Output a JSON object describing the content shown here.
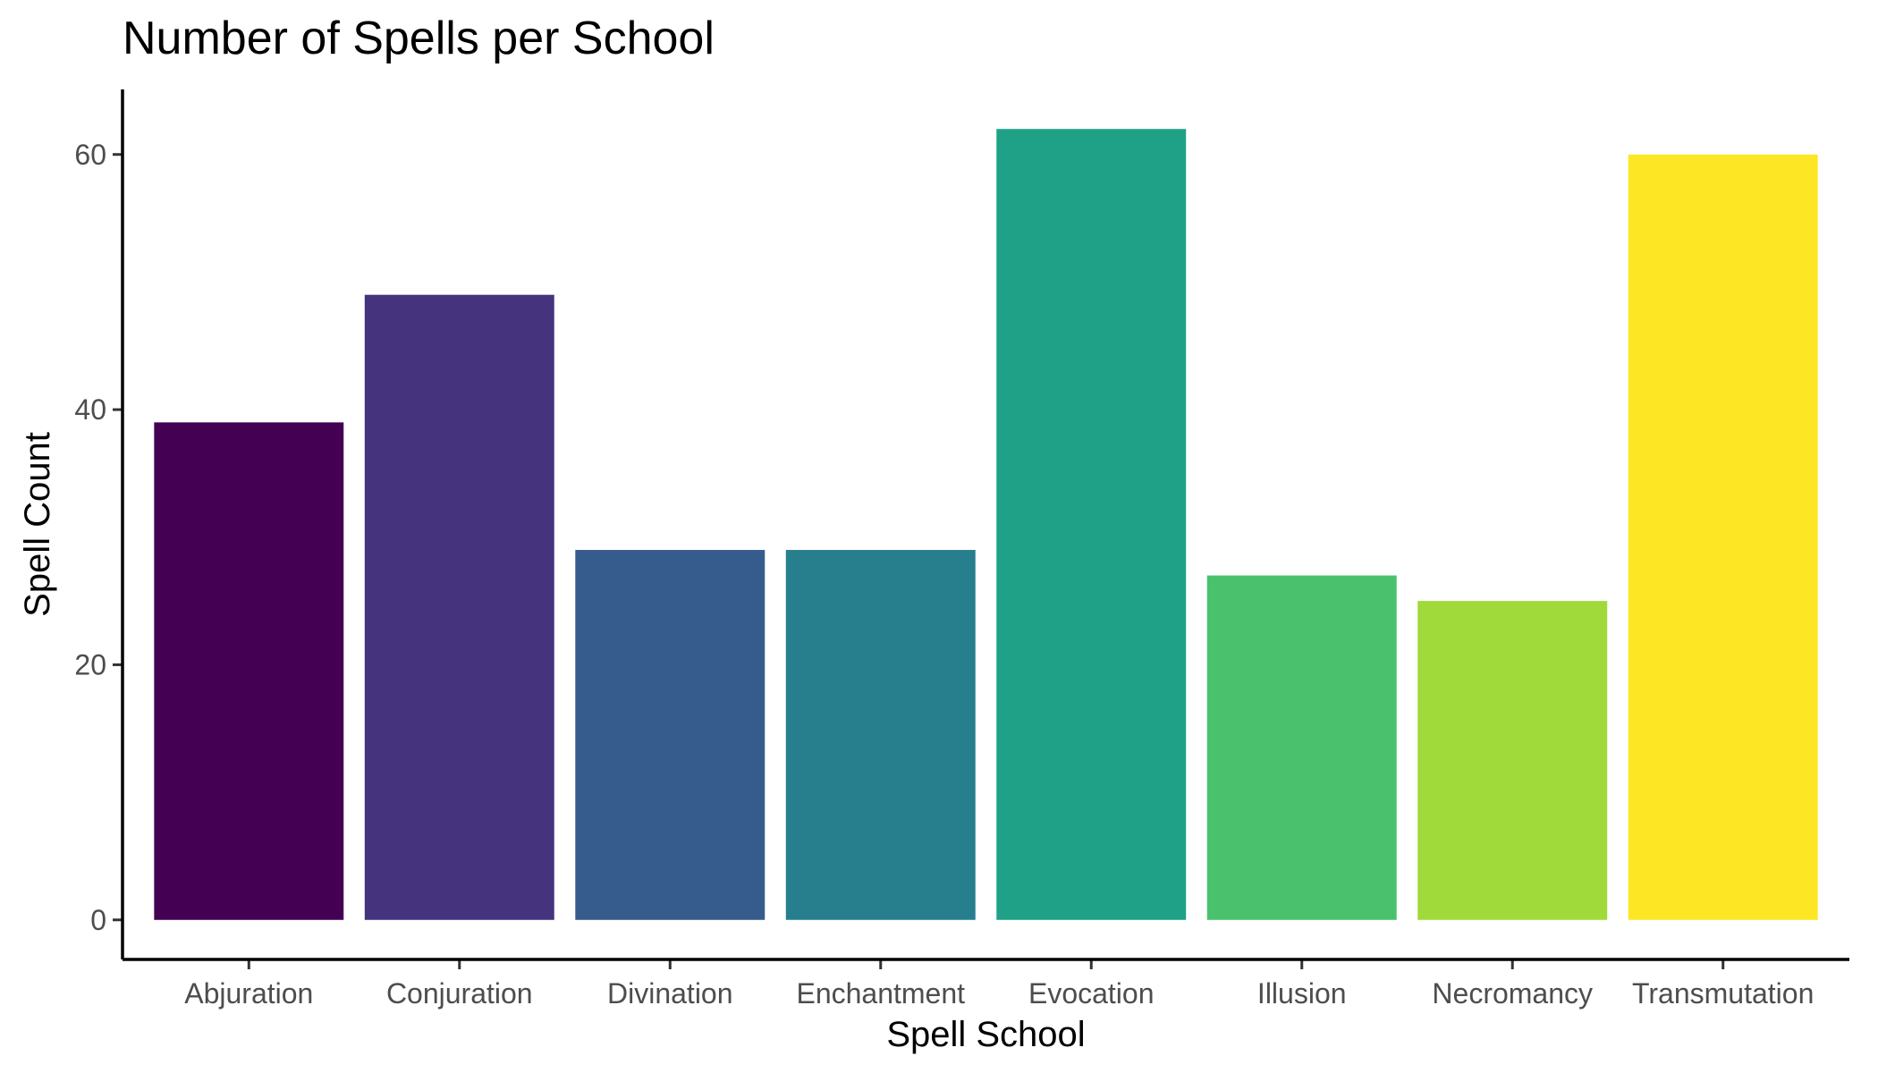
{
  "chart_data": {
    "type": "bar",
    "title": "Number of Spells per School",
    "xlabel": "Spell School",
    "ylabel": "Spell Count",
    "categories": [
      "Abjuration",
      "Conjuration",
      "Divination",
      "Enchantment",
      "Evocation",
      "Illusion",
      "Necromancy",
      "Transmutation"
    ],
    "values": [
      39,
      49,
      29,
      29,
      62,
      27,
      25,
      60
    ],
    "colors": [
      "#440154",
      "#46337E",
      "#365C8D",
      "#277F8E",
      "#1FA187",
      "#4AC16D",
      "#9FDA3A",
      "#FDE725"
    ],
    "yticks": [
      0,
      20,
      40,
      60
    ],
    "ylim": [
      -3.1,
      65.1
    ],
    "grid": false,
    "legend": "none"
  }
}
